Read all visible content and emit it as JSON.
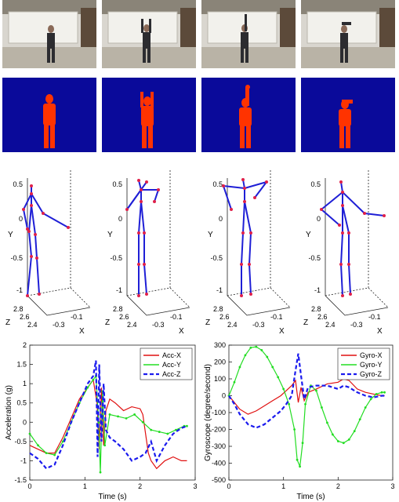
{
  "colors": {
    "skeleton": "#1f1fd6",
    "joint": "#e0204a",
    "depth_bg": "#0a0a9a",
    "depth_body": "#ff3300",
    "acc_x": "#e01010",
    "acc_y": "#22dd22",
    "acc_z": "#1a1aee",
    "gyro_x": "#e01010",
    "gyro_y": "#22dd22",
    "gyro_z": "#1a1aee"
  },
  "panels": {
    "rgb_frames": 4,
    "depth_frames": 4,
    "skeleton_axes": {
      "ylabel": "Y",
      "zlabel": "Z",
      "xlabel": "X",
      "y_ticks": [
        "0.5",
        "0",
        "-0.5",
        "-1"
      ],
      "z_ticks": [
        "2.8",
        "2.6",
        "2.4"
      ],
      "x_ticks": [
        "-0.3",
        "-0.1"
      ]
    }
  },
  "chart_data": [
    {
      "type": "line",
      "title": "",
      "xlabel": "Time (s)",
      "ylabel": "Acceleration (g)",
      "xlim": [
        0,
        3
      ],
      "ylim": [
        -1.5,
        2
      ],
      "xticks": [
        0,
        1,
        2,
        3
      ],
      "yticks": [
        -1.5,
        -1,
        -0.5,
        0,
        0.5,
        1,
        1.5,
        2
      ],
      "legend": "top-right",
      "series": [
        {
          "name": "Acc-X",
          "style": "solid",
          "x": [
            0,
            0.15,
            0.3,
            0.45,
            0.6,
            0.75,
            0.9,
            1.05,
            1.15,
            1.22,
            1.26,
            1.3,
            1.34,
            1.38,
            1.45,
            1.55,
            1.7,
            1.85,
            2.0,
            2.05,
            2.1,
            2.15,
            2.2,
            2.3,
            2.45,
            2.6,
            2.75,
            2.85
          ],
          "y": [
            -0.6,
            -0.7,
            -0.8,
            -0.8,
            -0.4,
            0.1,
            0.6,
            0.9,
            1.1,
            0.5,
            -0.7,
            0.9,
            -0.6,
            0.3,
            0.6,
            0.5,
            0.3,
            0.4,
            0.35,
            0.2,
            -0.3,
            -0.8,
            -1.0,
            -1.2,
            -1.0,
            -0.9,
            -1.0,
            -1.0
          ]
        },
        {
          "name": "Acc-Y",
          "style": "solid-marker",
          "x": [
            0,
            0.15,
            0.3,
            0.45,
            0.6,
            0.75,
            0.9,
            1.05,
            1.15,
            1.2,
            1.25,
            1.28,
            1.32,
            1.36,
            1.45,
            1.6,
            1.75,
            1.9,
            2.05,
            2.2,
            2.35,
            2.5,
            2.65,
            2.8,
            2.85
          ],
          "y": [
            -0.3,
            -0.6,
            -0.8,
            -0.85,
            -0.5,
            0.0,
            0.5,
            0.9,
            1.1,
            1.2,
            0.0,
            -1.3,
            0.8,
            -0.6,
            0.2,
            0.15,
            0.1,
            0.2,
            0.0,
            -0.2,
            -0.25,
            -0.3,
            -0.2,
            -0.1,
            -0.1
          ]
        },
        {
          "name": "Acc-Z",
          "style": "dashed",
          "x": [
            0,
            0.15,
            0.3,
            0.45,
            0.6,
            0.75,
            0.9,
            1.05,
            1.15,
            1.2,
            1.23,
            1.26,
            1.3,
            1.34,
            1.38,
            1.45,
            1.55,
            1.7,
            1.85,
            2.0,
            2.1,
            2.2,
            2.3,
            2.45,
            2.6,
            2.75,
            2.85
          ],
          "y": [
            -0.8,
            -0.95,
            -1.2,
            -1.1,
            -0.6,
            0.0,
            0.5,
            1.0,
            1.2,
            1.6,
            -0.9,
            1.5,
            -0.5,
            1.0,
            -0.2,
            -0.4,
            -0.5,
            -0.7,
            -1.0,
            -0.9,
            -0.8,
            -0.5,
            -1.0,
            -0.6,
            -0.3,
            -0.15,
            -0.1
          ]
        }
      ]
    },
    {
      "type": "line",
      "title": "",
      "xlabel": "Time (s)",
      "ylabel": "Gyroscope (degree/second)",
      "xlim": [
        0,
        3
      ],
      "ylim": [
        -500,
        300
      ],
      "xticks": [
        0,
        1,
        2,
        3
      ],
      "yticks": [
        -500,
        -400,
        -300,
        -200,
        -100,
        0,
        100,
        200,
        300
      ],
      "legend": "top-right",
      "series": [
        {
          "name": "Gyro-X",
          "style": "solid",
          "x": [
            0,
            0.1,
            0.2,
            0.35,
            0.5,
            0.65,
            0.8,
            0.95,
            1.05,
            1.15,
            1.22,
            1.27,
            1.32,
            1.38,
            1.45,
            1.6,
            1.8,
            2.0,
            2.1,
            2.2,
            2.35,
            2.5,
            2.65,
            2.8,
            2.85
          ],
          "y": [
            0,
            -40,
            -80,
            -110,
            -90,
            -60,
            -30,
            0,
            30,
            60,
            90,
            -40,
            50,
            -30,
            20,
            40,
            70,
            80,
            100,
            90,
            40,
            20,
            10,
            0,
            0
          ]
        },
        {
          "name": "Gyro-Y",
          "style": "solid-marker",
          "x": [
            0,
            0.1,
            0.2,
            0.3,
            0.4,
            0.5,
            0.6,
            0.7,
            0.8,
            0.9,
            1.0,
            1.1,
            1.2,
            1.25,
            1.3,
            1.35,
            1.4,
            1.5,
            1.6,
            1.7,
            1.8,
            1.9,
            2.0,
            2.1,
            2.2,
            2.3,
            2.4,
            2.5,
            2.6,
            2.7,
            2.8,
            2.85
          ],
          "y": [
            0,
            80,
            170,
            240,
            285,
            290,
            270,
            230,
            170,
            110,
            40,
            -50,
            -200,
            -380,
            -420,
            -280,
            -50,
            60,
            30,
            -70,
            -160,
            -230,
            -270,
            -280,
            -260,
            -210,
            -140,
            -70,
            -20,
            10,
            20,
            20
          ]
        },
        {
          "name": "Gyro-Z",
          "style": "dashed",
          "x": [
            0,
            0.1,
            0.2,
            0.35,
            0.5,
            0.65,
            0.8,
            0.95,
            1.05,
            1.15,
            1.22,
            1.27,
            1.32,
            1.38,
            1.45,
            1.6,
            1.8,
            2.0,
            2.1,
            2.2,
            2.35,
            2.5,
            2.65,
            2.8,
            2.85
          ],
          "y": [
            0,
            -50,
            -110,
            -170,
            -190,
            -170,
            -130,
            -90,
            -50,
            0,
            150,
            250,
            120,
            -20,
            50,
            60,
            60,
            40,
            60,
            50,
            20,
            0,
            -10,
            0,
            0
          ]
        }
      ]
    }
  ]
}
